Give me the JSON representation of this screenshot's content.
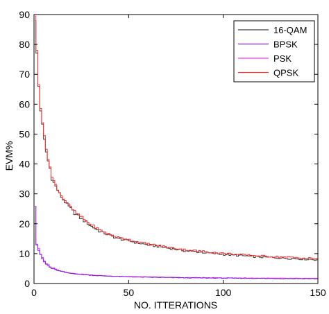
{
  "chart_data": {
    "type": "line",
    "step": true,
    "title": "",
    "xlabel": "NO. ITTERATIONS",
    "ylabel": "EVM%",
    "xlim": [
      0,
      150
    ],
    "ylim": [
      0,
      90
    ],
    "xticks": [
      0,
      50,
      100,
      150
    ],
    "yticks": [
      0,
      10,
      20,
      30,
      40,
      50,
      60,
      70,
      80,
      90
    ],
    "grid": false,
    "legend_position": "top-right",
    "x_samples": [
      1,
      2,
      3,
      4,
      5,
      6,
      7,
      8,
      9,
      10,
      12,
      14,
      16,
      18,
      20,
      22,
      25,
      28,
      30,
      35,
      40,
      45,
      50,
      55,
      60,
      70,
      80,
      90,
      100,
      110,
      120,
      130,
      140,
      150
    ],
    "series": [
      {
        "name": "16-QAM",
        "color": "#3c3c3c",
        "values": [
          88,
          77,
          66,
          58,
          53,
          48,
          44,
          41,
          38.5,
          35,
          32.5,
          30,
          28,
          26.5,
          25,
          23.5,
          22,
          20.5,
          19.5,
          17.5,
          16.2,
          15,
          14.4,
          13.6,
          13,
          12,
          11,
          10.4,
          9.8,
          9.3,
          8.9,
          8.6,
          8.3,
          8.0
        ]
      },
      {
        "name": "BPSK",
        "color": "#7a1fd6",
        "values": [
          25.8,
          13,
          11.2,
          9.4,
          8.2,
          7.2,
          6.5,
          6,
          5.5,
          5.1,
          4.6,
          4.2,
          3.9,
          3.6,
          3.4,
          3.25,
          3.05,
          2.9,
          2.8,
          2.6,
          2.45,
          2.35,
          2.25,
          2.15,
          2.1,
          2.0,
          1.9,
          1.85,
          1.8,
          1.75,
          1.7,
          1.65,
          1.62,
          1.6
        ]
      },
      {
        "name": "PSK",
        "color": "#ff33ff",
        "values": [
          25.8,
          13.3,
          11.5,
          9.7,
          8.4,
          7.4,
          6.7,
          6.2,
          5.7,
          5.3,
          4.8,
          4.35,
          4.0,
          3.75,
          3.5,
          3.35,
          3.15,
          3.0,
          2.9,
          2.7,
          2.55,
          2.45,
          2.35,
          2.25,
          2.2,
          2.1,
          2.0,
          1.95,
          1.9,
          1.85,
          1.8,
          1.75,
          1.72,
          1.7
        ]
      },
      {
        "name": "QPSK",
        "color": "#ff2a2a",
        "values": [
          89.5,
          78,
          67,
          59,
          54,
          49,
          45,
          42,
          39,
          35.5,
          33,
          30.5,
          28.5,
          27,
          25.5,
          24,
          22.5,
          21,
          20,
          18,
          16.6,
          15.4,
          14.8,
          14,
          13.3,
          12.3,
          11.3,
          10.7,
          10.1,
          9.6,
          9.2,
          8.9,
          8.6,
          8.3
        ]
      }
    ]
  }
}
